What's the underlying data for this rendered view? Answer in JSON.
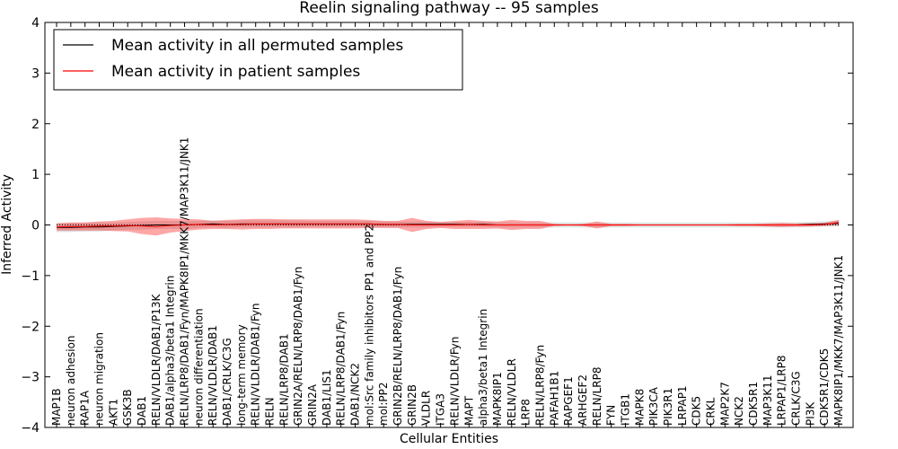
{
  "chart_data": {
    "type": "line",
    "title": "Reelin signaling pathway -- 95 samples",
    "xlabel": "Cellular Entities",
    "ylabel": "Inferred Activity",
    "ylim": [
      -4,
      4
    ],
    "yticks": [
      -4,
      -3,
      -2,
      -1,
      0,
      1,
      2,
      3,
      4
    ],
    "ytick_labels": [
      "−4",
      "−3",
      "−2",
      "−1",
      "0",
      "1",
      "2",
      "3",
      "4"
    ],
    "grid": false,
    "legend_position": "top-left",
    "categories": [
      "MAP1B",
      "neuron adhesion",
      "RAP1A",
      "neuron migration",
      "AKT1",
      "GSK3B",
      "DAB1",
      "RELN/VLDLR/DAB1/P13K",
      "DAB1/alpha3/beta1 Integrin",
      "RELN/LRP8/DAB1/Fyn/MAPK8IP1/MKK7/MAP3K11/JNK1",
      "neuron differentiation",
      "RELN/VLDLR/DAB1",
      "DAB1/CRLK/C3G",
      "long-term memory",
      "RELN/VLDLR/DAB1/Fyn",
      "RELN",
      "RELN/LRP8/DAB1",
      "GRIN2A/RELN/LRP8/DAB1/Fyn",
      "GRIN2A",
      "DAB1/LIS1",
      "RELN/LRP8/DAB1/Fyn",
      "DAB1/NCK2",
      "mol:Src family inhibitors PP1 and PP2",
      "mol:PP2",
      "GRIN2B/RELN/LRP8/DAB1/Fyn",
      "GRIN2B",
      "VLDLR",
      "ITGA3",
      "RELN/VLDLR/Fyn",
      "MAPT",
      "alpha3/beta1 Integrin",
      "MAPK8IP1",
      "RELN/VLDLR",
      "LRP8",
      "RELN/LRP8/Fyn",
      "PAFAH1B1",
      "RAPGEF1",
      "ARHGEF2",
      "RELN/LRP8",
      "FYN",
      "ITGB1",
      "MAPK8",
      "PIK3CA",
      "PIK3R1",
      "LRPAP1",
      "CDK5",
      "CRKL",
      "MAP2K7",
      "NCK2",
      "CDK5R1",
      "MAP3K11",
      "LRPAP1/LRP8",
      "CRLK/C3G",
      "PI3K",
      "CDK5R1/CDK5",
      "MAPK8IP1/MKK7/MAP3K11/JNK1"
    ],
    "series": [
      {
        "name": "Mean activity in all permuted samples",
        "color": "#000000",
        "values": [
          -0.05,
          -0.05,
          -0.04,
          -0.04,
          -0.03,
          -0.02,
          -0.01,
          0.0,
          0.0,
          0.0,
          0.01,
          0.02,
          0.01,
          0.02,
          0.02,
          0.02,
          0.02,
          0.02,
          0.02,
          0.02,
          0.02,
          0.02,
          0.02,
          0.01,
          0.01,
          0.01,
          0.01,
          0.01,
          0.01,
          0.01,
          0.01,
          0.0,
          0.0,
          0.0,
          0.0,
          0.0,
          0.0,
          0.0,
          0.0,
          0.0,
          0.0,
          0.0,
          0.0,
          0.0,
          0.0,
          0.0,
          0.0,
          0.0,
          0.0,
          0.0,
          0.0,
          0.0,
          0.0,
          0.01,
          0.02,
          0.03
        ],
        "band": [
          0.09,
          0.09,
          0.09,
          0.09,
          0.08,
          0.08,
          0.08,
          0.08,
          0.08,
          0.08,
          0.07,
          0.07,
          0.07,
          0.07,
          0.07,
          0.07,
          0.07,
          0.07,
          0.06,
          0.06,
          0.06,
          0.06,
          0.06,
          0.06,
          0.06,
          0.06,
          0.06,
          0.05,
          0.05,
          0.05,
          0.05,
          0.05,
          0.05,
          0.05,
          0.05,
          0.05,
          0.05,
          0.05,
          0.05,
          0.05,
          0.05,
          0.05,
          0.05,
          0.05,
          0.05,
          0.05,
          0.05,
          0.05,
          0.05,
          0.05,
          0.05,
          0.05,
          0.05,
          0.05,
          0.05,
          0.06
        ]
      },
      {
        "name": "Mean activity in patient samples",
        "color": "#ff0000",
        "values": [
          -0.04,
          -0.03,
          -0.03,
          -0.02,
          -0.02,
          -0.01,
          -0.02,
          -0.03,
          -0.01,
          0.0,
          0.01,
          0.0,
          0.01,
          0.01,
          0.02,
          0.02,
          0.02,
          0.02,
          0.02,
          0.02,
          0.02,
          0.02,
          0.02,
          0.01,
          0.01,
          0.0,
          0.0,
          0.0,
          0.0,
          0.01,
          0.0,
          0.0,
          0.0,
          0.0,
          0.0,
          0.0,
          0.0,
          0.0,
          0.0,
          0.0,
          0.0,
          0.0,
          0.0,
          0.0,
          0.0,
          0.0,
          0.0,
          0.0,
          0.0,
          0.0,
          0.0,
          0.0,
          0.0,
          0.0,
          0.01,
          0.05
        ],
        "band": [
          0.07,
          0.08,
          0.08,
          0.09,
          0.1,
          0.12,
          0.16,
          0.18,
          0.14,
          0.12,
          0.1,
          0.08,
          0.09,
          0.1,
          0.1,
          0.1,
          0.09,
          0.09,
          0.09,
          0.09,
          0.09,
          0.09,
          0.08,
          0.07,
          0.07,
          0.14,
          0.08,
          0.06,
          0.08,
          0.09,
          0.08,
          0.07,
          0.1,
          0.08,
          0.08,
          0.02,
          0.01,
          0.02,
          0.07,
          0.02,
          0.02,
          0.01,
          0.01,
          0.01,
          0.01,
          0.01,
          0.01,
          0.01,
          0.02,
          0.02,
          0.03,
          0.04,
          0.03,
          0.03,
          0.03,
          0.05
        ]
      }
    ]
  }
}
